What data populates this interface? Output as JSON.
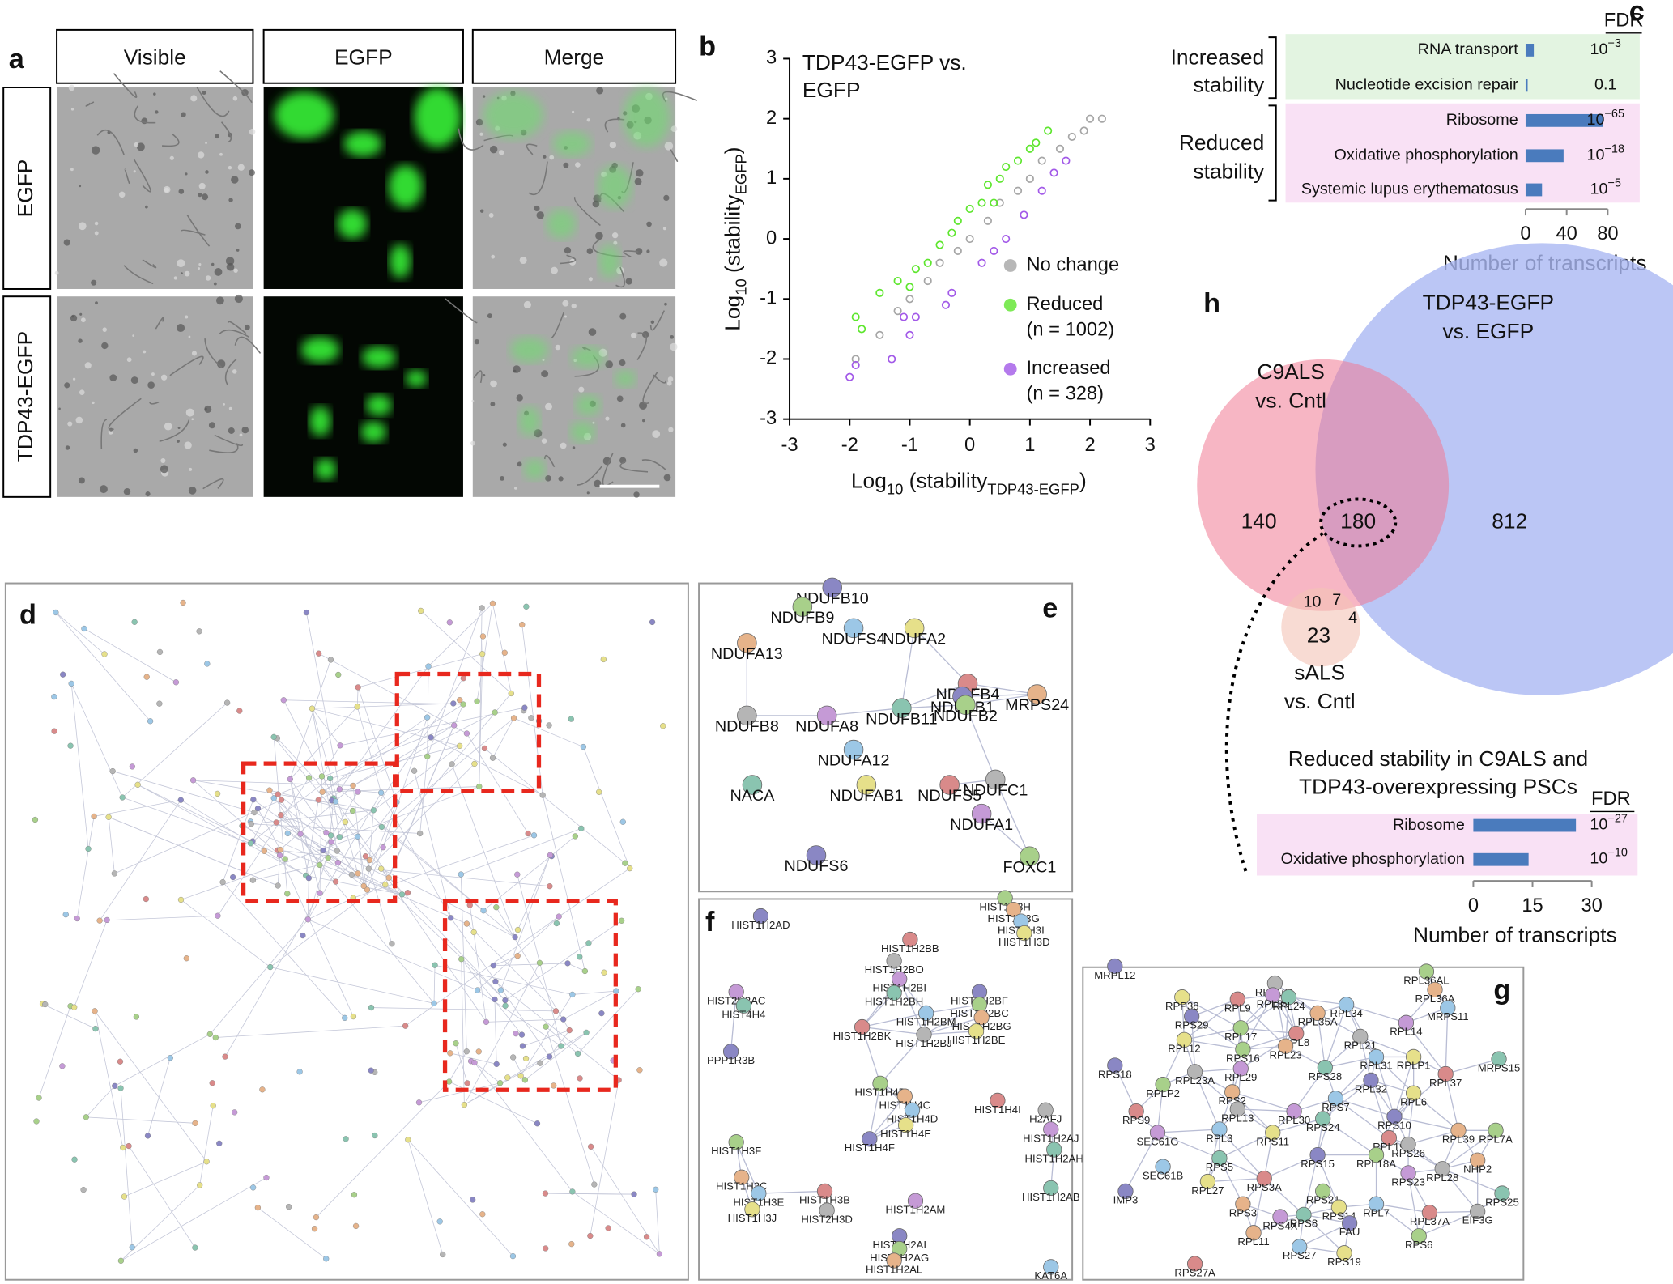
{
  "panel_labels": [
    "a",
    "b",
    "c",
    "d",
    "e",
    "f",
    "g",
    "h"
  ],
  "microscopy": {
    "columns": [
      "Visible",
      "EGFP",
      "Merge"
    ],
    "rows": [
      "EGFP",
      "TDP43-EGFP"
    ]
  },
  "chart_data": [
    {
      "type": "scatter",
      "title_lines": [
        "TDP43-EGFP vs.",
        "EGFP"
      ],
      "x_label": {
        "parts": [
          "Log",
          "10",
          " (stability",
          "TDP43-EGFP",
          ")"
        ]
      },
      "y_label": {
        "parts": [
          "Log",
          "10",
          " (stability",
          "EGFP",
          ")"
        ]
      },
      "xlim": [
        -3,
        3
      ],
      "ylim": [
        -3,
        3
      ],
      "xticks": [
        -3,
        -2,
        -1,
        0,
        1,
        2,
        3
      ],
      "yticks": [
        -3,
        -2,
        -1,
        0,
        1,
        2,
        3
      ],
      "legend": "lower right",
      "series": [
        {
          "name": "No change",
          "color": "#a6a6a6",
          "x": [
            -1.9,
            -1.5,
            -1.2,
            -1.0,
            -0.7,
            -0.5,
            -0.2,
            0,
            0.3,
            0.5,
            0.8,
            1.0,
            1.2,
            1.5,
            1.7,
            1.9,
            2.0,
            2.2
          ],
          "y": [
            -2.0,
            -1.6,
            -1.2,
            -1.0,
            -0.7,
            -0.4,
            -0.2,
            0,
            0.3,
            0.6,
            0.8,
            1.0,
            1.3,
            1.5,
            1.7,
            1.8,
            2.0,
            2.0
          ]
        },
        {
          "name": "Reduced",
          "count_label": "(n = 1002)",
          "color": "#5ee62e",
          "x": [
            -1.9,
            -1.8,
            -1.5,
            -1.2,
            -1.0,
            -0.9,
            -0.7,
            -0.5,
            -0.3,
            -0.2,
            0,
            0.2,
            0.3,
            0.4,
            0.5,
            0.6,
            0.8,
            1.0,
            1.1,
            1.3
          ],
          "y": [
            -1.3,
            -1.5,
            -0.9,
            -0.7,
            -0.8,
            -0.5,
            -0.4,
            -0.1,
            0.1,
            0.3,
            0.5,
            0.6,
            0.9,
            0.6,
            1.0,
            1.2,
            1.3,
            1.5,
            1.6,
            1.8
          ]
        },
        {
          "name": "Increased",
          "count_label": "(n = 328)",
          "color": "#a259e8",
          "x": [
            -2.0,
            -1.9,
            -1.3,
            -1.0,
            -1.1,
            -0.9,
            -0.4,
            -0.3,
            0.2,
            0.4,
            0.6,
            0.9,
            1.2,
            1.4,
            1.6
          ],
          "y": [
            -2.3,
            -2.1,
            -2.0,
            -1.6,
            -1.3,
            -1.3,
            -1.1,
            -0.9,
            -0.4,
            -0.2,
            0,
            0.4,
            0.8,
            1.1,
            1.3
          ]
        }
      ]
    },
    {
      "type": "bar",
      "fdr_header": "FDR",
      "groups": [
        {
          "label_lines": [
            "Increased",
            "stability"
          ],
          "categories": [
            "RNA transport",
            "Nucleotide excision repair"
          ],
          "values": [
            8,
            2
          ],
          "fdr": [
            {
              "base": "10",
              "exp": "−3"
            },
            {
              "base": "0.1"
            }
          ]
        },
        {
          "label_lines": [
            "Reduced",
            "stability"
          ],
          "categories": [
            "Ribosome",
            "Oxidative phosphorylation",
            "Systemic lupus erythematosus"
          ],
          "values": [
            75,
            37,
            16
          ],
          "fdr": [
            {
              "base": "10",
              "exp": "−65"
            },
            {
              "base": "10",
              "exp": "−18"
            },
            {
              "base": "10",
              "exp": "−5"
            }
          ]
        }
      ],
      "color": "#4a7bbd",
      "xlim": [
        0,
        80
      ],
      "xticks": [
        0,
        40,
        80
      ],
      "x_label": "Number of transcripts"
    },
    {
      "type": "bar",
      "title_lines": [
        "Reduced stability in C9ALS and",
        "TDP43-overexpressing PSCs"
      ],
      "fdr_header": "FDR",
      "categories": [
        "Ribosome",
        "Oxidative phosphorylation"
      ],
      "values": [
        26,
        14
      ],
      "fdr": [
        {
          "base": "10",
          "exp": "−27"
        },
        {
          "base": "10",
          "exp": "−10"
        }
      ],
      "color": "#4a7bbd",
      "xlim": [
        0,
        30
      ],
      "xticks": [
        0,
        15,
        30
      ],
      "x_label": "Number of transcripts"
    }
  ],
  "venn": {
    "set_labels": [
      [
        "TDP43-EGFP",
        "vs. EGFP"
      ],
      [
        "C9ALS",
        "vs. Cntl"
      ],
      [
        "sALS",
        "vs. Cntl"
      ]
    ],
    "region_counts": [
      140,
      180,
      812,
      10,
      7,
      23,
      4
    ]
  },
  "network_e": {
    "labels": [
      "NDUFB10",
      "NDUFB9",
      "NDUFA13",
      "NDUFS4",
      "NDUFA2",
      "NDUFB4",
      "NDUFB8",
      "NDUFA8",
      "NDUFB11",
      "NDUFB1",
      "NDUFB2",
      "MRPS24",
      "NDUFA12",
      "NDUFAB1",
      "NDUFS5",
      "NDUFC1",
      "NDUFA1",
      "NACA",
      "NDUFS6",
      "FOXC1"
    ]
  },
  "network_f": {
    "labels": [
      "HIST1H2AD",
      "HIST1H3H",
      "HIST1H3G",
      "HIST1H3I",
      "HIST1H3D",
      "HIST1H2BB",
      "HIST1H2BO",
      "HIST1H2BI",
      "HIST1H2BH",
      "HIST1H2BF",
      "HIST1H2BC",
      "HIST1H2BG",
      "HIST1H2BM",
      "HIST1H2BE",
      "HIST1H2BK",
      "HIST1H2BJ",
      "HIST2H2AC",
      "HIST4H4",
      "PPP1R3B",
      "HIST1H4B",
      "HIST1H4C",
      "HIST1H4D",
      "HIST1H4E",
      "HIST1H4I",
      "H2AFJ",
      "HIST1H2AJ",
      "HIST1H2AH",
      "HIST1H4F",
      "HIST1H3F",
      "HIST1H3C",
      "HIST1H3E",
      "HIST1H3J",
      "HIST1H3B",
      "HIST2H3D",
      "HIST1H2AM",
      "HIST1H2AB",
      "HIST1H2AI",
      "HIST1H2AG",
      "HIST1H2AL",
      "KAT6A"
    ]
  },
  "network_g": {
    "labels": [
      "MRPL12",
      "RPL36AL",
      "RPL36A",
      "MRPS11",
      "RPP38",
      "RPL9",
      "RPL10A",
      "RPL35",
      "RPL24",
      "RPS29",
      "RPL17",
      "RPL35A",
      "RPL34",
      "RPL12",
      "RPL8",
      "RPL21",
      "RPL14",
      "MRPS15",
      "RPS18",
      "RPS16",
      "RPL23",
      "RPL31",
      "RPLP1",
      "RPL37",
      "RPL23A",
      "RPL29",
      "RPS28",
      "RPL32",
      "RPLP2",
      "RPS2",
      "RPS7",
      "RPL6",
      "RPS9",
      "RPL13",
      "RPL30",
      "RPS24",
      "RPS10",
      "RPL7A",
      "RPL39",
      "RPL3",
      "RPS11",
      "RPL19",
      "RPS26",
      "SEC61G",
      "RPS5",
      "RPS15",
      "RPL18A",
      "NHP2",
      "SEC61B",
      "RPL27",
      "RPS3A",
      "RPL28",
      "RPS23",
      "RPS25",
      "IMP3",
      "RPS21",
      "RPS3",
      "RPL7",
      "RPS14",
      "RPL37A",
      "EIF3G",
      "RPS4X",
      "RPS8",
      "FAU",
      "RPS6",
      "RPL11",
      "RPS27",
      "RPS19",
      "RPS27A"
    ]
  }
}
